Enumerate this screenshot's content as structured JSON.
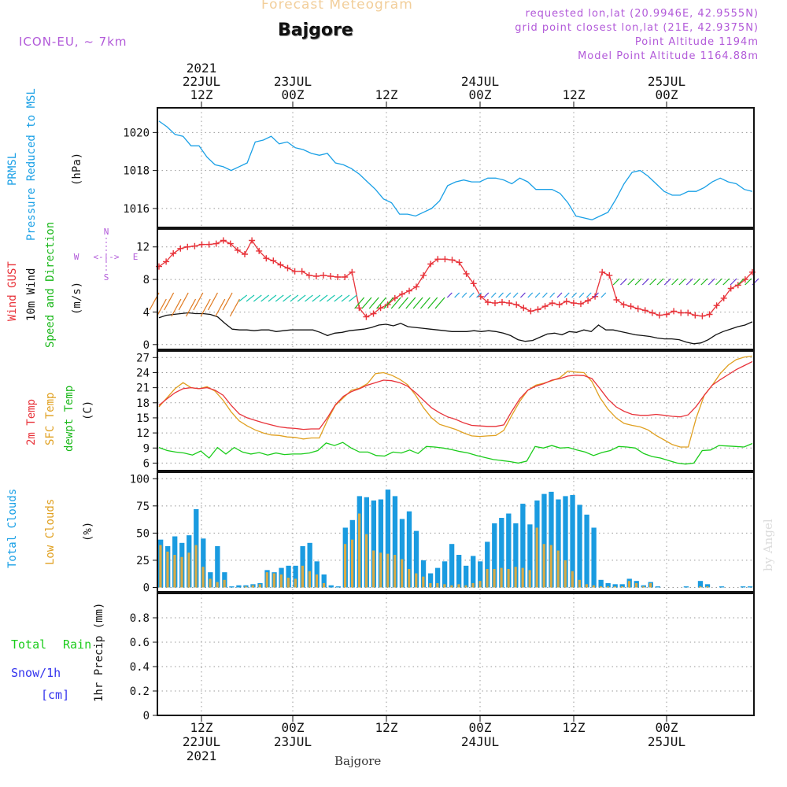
{
  "header": {
    "title_faded": "Forecast Meteogram",
    "location": "Bajgore",
    "model": "ICON-EU, ~ 7km",
    "requested": "requested lon,lat (20.9946E, 42.9555N)",
    "closest": "grid point closest lon,lat (21E, 42.9375N)",
    "point_alt": "Point Altitude 1194m",
    "model_alt": "Model Point Altitude 1164.88m",
    "footer_location": "Bajgore",
    "watermark": "by Angel"
  },
  "colors": {
    "pressure": "#1aa0e6",
    "gust": "#e8333a",
    "wind": "#111111",
    "barbs_label": "#1bb81b",
    "temp": "#e8333a",
    "sfc": "#e0a020",
    "dew": "#1bcc1b",
    "total_clouds": "#1a9be0",
    "low_clouds": "#d9aa44",
    "rain": "#1bcc1b",
    "snow": "#3333ee",
    "compass": "#b25ad9"
  },
  "time_axis": {
    "top_labels": [
      {
        "l1": "2021",
        "l2": "22JUL",
        "l3": "12Z"
      },
      {
        "l1": "",
        "l2": "23JUL",
        "l3": "00Z"
      },
      {
        "l1": "",
        "l2": "",
        "l3": "12Z"
      },
      {
        "l1": "",
        "l2": "24JUL",
        "l3": "00Z"
      },
      {
        "l1": "",
        "l2": "",
        "l3": "12Z"
      },
      {
        "l1": "",
        "l2": "25JUL",
        "l3": "00Z"
      }
    ],
    "bottom_labels": [
      {
        "l1": "12Z",
        "l2": "22JUL",
        "l3": "2021"
      },
      {
        "l1": "00Z",
        "l2": "23JUL",
        "l3": ""
      },
      {
        "l1": "12Z",
        "l2": "",
        "l3": ""
      },
      {
        "l1": "00Z",
        "l2": "24JUL",
        "l3": ""
      },
      {
        "l1": "12Z",
        "l2": "",
        "l3": ""
      },
      {
        "l1": "00Z",
        "l2": "25JUL",
        "l3": ""
      }
    ]
  },
  "panel_labels": {
    "p1": [
      "PRMSL",
      "Pressure Reduced to MSL"
    ],
    "p1_unit": "(hPa)",
    "p2_gust": "Wind GUST",
    "p2_wind": "10m Wind",
    "p2_dir": "Speed and Direction",
    "p2_unit": "(m/s)",
    "compass": {
      "n": "N",
      "s": "S",
      "w": "W",
      "e": "E",
      "arrows": "<-|->"
    },
    "p3_t2m": "2m Temp",
    "p3_sfc": "SFC Temp",
    "p3_dew": "dewpt Temp",
    "p3_unit": "(C)",
    "p4_total": "Total Clouds",
    "p4_low": "Low Clouds",
    "p4_unit": "(%)",
    "p5_total": "Total",
    "p5_rain": "Rain",
    "p5_snow": "Snow/1h",
    "p5_cm": "[cm]",
    "p5_unit": "1hr Precip (mm)"
  },
  "chart_data": [
    {
      "type": "line",
      "title": "PRMSL Pressure Reduced to MSL",
      "ylabel": "(hPa)",
      "ylim": [
        1015,
        1021.3
      ],
      "yticks": [
        1016,
        1018,
        1020
      ],
      "x_hours": "hours from 22JUL 06Z, hourly step, 0..64",
      "series": [
        {
          "name": "PRMSL",
          "values": [
            1020.6,
            1020.3,
            1019.9,
            1019.8,
            1019.3,
            1019.3,
            1018.7,
            1018.3,
            1018.2,
            1018.0,
            1018.2,
            1018.4,
            1019.5,
            1019.6,
            1019.8,
            1019.4,
            1019.5,
            1019.2,
            1019.1,
            1018.9,
            1018.8,
            1018.9,
            1018.4,
            1018.3,
            1018.1,
            1017.8,
            1017.4,
            1017.0,
            1016.5,
            1016.3,
            1015.7,
            1015.7,
            1015.6,
            1015.8,
            1016.0,
            1016.4,
            1017.2,
            1017.4,
            1017.5,
            1017.4,
            1017.4,
            1017.6,
            1017.6,
            1017.5,
            1017.3,
            1017.6,
            1017.4,
            1017.0,
            1017.0,
            1017.0,
            1016.8,
            1016.3,
            1015.6,
            1015.5,
            1015.4,
            1015.6,
            1015.8,
            1016.5,
            1017.3,
            1017.9,
            1018.0,
            1017.7,
            1017.3,
            1016.9,
            1016.7,
            1016.7,
            1016.9,
            1016.9,
            1017.1,
            1017.4,
            1017.6,
            1017.4,
            1017.3,
            1017.0,
            1016.9
          ]
        }
      ]
    },
    {
      "type": "line",
      "title": "Wind GUST / 10m Wind Speed and Direction",
      "ylabel": "(m/s)",
      "ylim": [
        -0.6,
        14.2
      ],
      "yticks": [
        0,
        4,
        8,
        12
      ],
      "series": [
        {
          "name": "Wind GUST",
          "values": [
            9.6,
            10.2,
            11.2,
            11.8,
            12.0,
            12.1,
            12.3,
            12.3,
            12.4,
            12.8,
            12.4,
            11.6,
            11.1,
            12.8,
            11.5,
            10.6,
            10.3,
            9.8,
            9.4,
            9.0,
            9.0,
            8.5,
            8.4,
            8.5,
            8.4,
            8.3,
            8.3,
            8.9,
            4.5,
            3.4,
            3.8,
            4.5,
            4.9,
            5.7,
            6.2,
            6.6,
            7.1,
            8.5,
            9.9,
            10.5,
            10.5,
            10.4,
            10.1,
            8.7,
            7.5,
            5.9,
            5.2,
            5.1,
            5.2,
            5.1,
            4.9,
            4.5,
            4.1,
            4.3,
            4.7,
            5.1,
            4.9,
            5.3,
            5.1,
            5.0,
            5.4,
            5.9,
            8.9,
            8.5,
            5.5,
            4.9,
            4.7,
            4.4,
            4.2,
            3.9,
            3.6,
            3.7,
            4.1,
            3.9,
            3.9,
            3.6,
            3.5,
            3.7,
            4.8,
            5.7,
            6.9,
            7.3,
            8.0,
            8.9
          ]
        },
        {
          "name": "10m Wind",
          "values": [
            3.3,
            3.6,
            3.7,
            3.8,
            3.9,
            3.8,
            3.8,
            3.7,
            3.4,
            2.6,
            1.9,
            1.8,
            1.8,
            1.7,
            1.8,
            1.8,
            1.6,
            1.7,
            1.8,
            1.8,
            1.8,
            1.8,
            1.5,
            1.1,
            1.4,
            1.5,
            1.7,
            1.8,
            1.9,
            2.1,
            2.4,
            2.5,
            2.3,
            2.6,
            2.2,
            2.1,
            2.0,
            1.9,
            1.8,
            1.7,
            1.6,
            1.6,
            1.6,
            1.7,
            1.6,
            1.7,
            1.6,
            1.4,
            1.1,
            0.6,
            0.4,
            0.5,
            0.9,
            1.3,
            1.4,
            1.2,
            1.6,
            1.5,
            1.8,
            1.6,
            2.4,
            1.8,
            1.8,
            1.6,
            1.4,
            1.2,
            1.1,
            1.0,
            0.8,
            0.7,
            0.7,
            0.6,
            0.3,
            0.1,
            0.2,
            0.6,
            1.2,
            1.6,
            1.9,
            2.2,
            2.4,
            2.8
          ]
        }
      ]
    },
    {
      "type": "line",
      "title": "2m Temp / SFC Temp / dewpt Temp",
      "ylabel": "(C)",
      "ylim": [
        4.5,
        28.3
      ],
      "yticks": [
        6,
        9,
        12,
        15,
        18,
        21,
        24,
        27
      ],
      "series": [
        {
          "name": "2m Temp",
          "values": [
            17.5,
            18.8,
            20.0,
            20.8,
            21.0,
            20.8,
            21.0,
            20.5,
            19.5,
            17.5,
            15.8,
            15.0,
            14.5,
            14.0,
            13.6,
            13.2,
            13.0,
            12.9,
            12.7,
            12.8,
            12.8,
            15.0,
            17.6,
            19.3,
            20.2,
            20.8,
            21.5,
            22.0,
            22.5,
            22.4,
            22.0,
            21.3,
            20.0,
            18.5,
            17.0,
            16.0,
            15.2,
            14.7,
            14.0,
            13.5,
            13.4,
            13.3,
            13.3,
            13.6,
            16.3,
            18.8,
            20.5,
            21.3,
            21.8,
            22.5,
            22.8,
            23.3,
            23.5,
            23.4,
            22.8,
            20.8,
            18.7,
            17.2,
            16.3,
            15.7,
            15.5,
            15.5,
            15.7,
            15.5,
            15.3,
            15.2,
            15.6,
            17.3,
            19.5,
            21.5,
            22.6,
            23.6,
            24.6,
            25.4,
            26.2
          ]
        },
        {
          "name": "SFC Temp",
          "values": [
            17.2,
            19.0,
            20.8,
            22.0,
            21.0,
            20.8,
            21.2,
            20.3,
            18.5,
            16.2,
            14.4,
            13.4,
            12.6,
            12.0,
            11.6,
            11.5,
            11.2,
            11.1,
            10.8,
            11.0,
            11.0,
            14.5,
            17.5,
            19.0,
            20.5,
            20.9,
            21.8,
            23.8,
            24.0,
            23.5,
            22.7,
            21.6,
            19.5,
            17.0,
            15.0,
            13.7,
            13.2,
            12.7,
            12.0,
            11.4,
            11.3,
            11.4,
            11.5,
            12.5,
            15.5,
            18.3,
            20.5,
            21.5,
            21.9,
            22.4,
            23.0,
            24.3,
            24.1,
            24.0,
            22.2,
            19.0,
            16.7,
            15.0,
            13.9,
            13.5,
            13.2,
            12.6,
            11.5,
            10.6,
            9.7,
            9.2,
            9.2,
            15.0,
            19.5,
            21.5,
            23.8,
            25.5,
            26.6,
            27.1,
            27.3
          ]
        },
        {
          "name": "dewpt Temp",
          "values": [
            9.1,
            8.5,
            8.2,
            8.0,
            7.6,
            8.4,
            7.0,
            9.1,
            7.8,
            9.1,
            8.2,
            7.8,
            8.1,
            7.6,
            8.0,
            7.7,
            7.8,
            7.8,
            8.0,
            8.5,
            10.0,
            9.5,
            10.1,
            9.0,
            8.2,
            8.2,
            7.5,
            7.4,
            8.2,
            8.0,
            8.6,
            7.9,
            9.3,
            9.2,
            9.0,
            8.7,
            8.3,
            8.0,
            7.5,
            7.1,
            6.7,
            6.5,
            6.3,
            6.0,
            6.4,
            9.3,
            9.0,
            9.5,
            9.0,
            9.1,
            8.6,
            8.2,
            7.5,
            8.1,
            8.5,
            9.3,
            9.2,
            9.0,
            7.9,
            7.3,
            7.0,
            6.5,
            6.0,
            5.8,
            6.0,
            8.5,
            8.6,
            9.5,
            9.4,
            9.3,
            9.2,
            9.9
          ]
        }
      ]
    },
    {
      "type": "bar",
      "title": "Total Clouds / Low Clouds",
      "ylabel": "(%)",
      "ylim": [
        -4,
        106
      ],
      "yticks": [
        0,
        25,
        50,
        75,
        100
      ],
      "series": [
        {
          "name": "Total Clouds",
          "values": [
            44,
            38,
            47,
            41,
            48,
            72,
            45,
            14,
            38,
            14,
            1,
            2,
            2,
            3,
            4,
            16,
            14,
            18,
            20,
            20,
            38,
            41,
            24,
            12,
            2,
            1,
            55,
            62,
            84,
            83,
            80,
            81,
            90,
            84,
            63,
            70,
            52,
            25,
            13,
            18,
            24,
            40,
            30,
            20,
            29,
            24,
            42,
            59,
            64,
            68,
            59,
            77,
            58,
            80,
            86,
            88,
            81,
            84,
            85,
            76,
            67,
            55,
            7,
            4,
            3,
            3,
            8,
            6,
            2,
            5,
            1,
            0,
            0,
            0,
            1,
            0,
            6,
            3,
            0,
            1,
            0,
            0,
            1,
            1
          ]
        },
        {
          "name": "Low Clouds",
          "values": [
            39,
            33,
            30,
            28,
            32,
            39,
            19,
            8,
            5,
            7,
            0,
            0,
            1,
            2,
            3,
            14,
            13,
            12,
            9,
            8,
            20,
            15,
            12,
            4,
            0,
            0,
            40,
            44,
            68,
            49,
            34,
            32,
            31,
            30,
            26,
            17,
            13,
            10,
            4,
            4,
            3,
            2,
            3,
            2,
            4,
            6,
            17,
            17,
            18,
            17,
            19,
            18,
            16,
            55,
            40,
            39,
            34,
            25,
            15,
            7,
            3,
            2,
            1,
            1,
            1,
            1,
            6,
            4,
            1,
            4,
            0,
            0,
            0,
            0,
            0,
            0,
            1,
            1,
            0,
            0,
            0,
            0,
            0,
            0
          ]
        }
      ]
    },
    {
      "type": "bar",
      "title": "Total Rain / Snow",
      "ylabel": "1hr Precip (mm)",
      "ylim": [
        0,
        1.0
      ],
      "yticks": [
        0,
        0.2,
        0.4,
        0.6,
        0.8
      ],
      "series": [
        {
          "name": "Total Rain",
          "values": []
        }
      ]
    }
  ]
}
